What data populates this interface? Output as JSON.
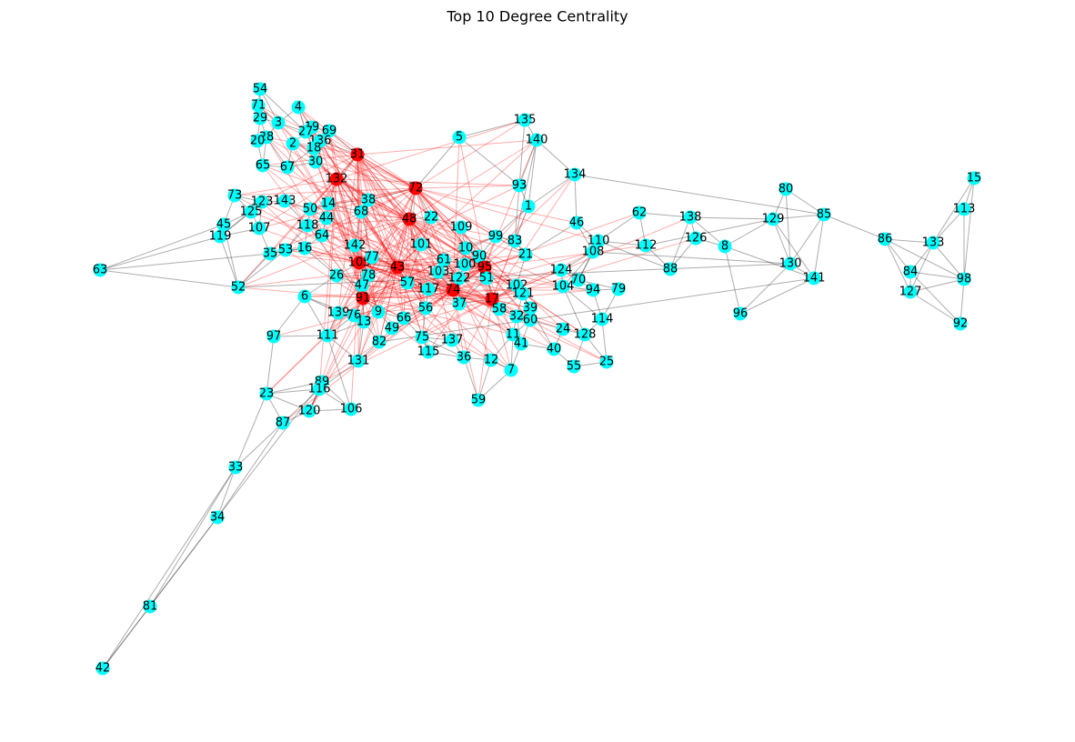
{
  "title": "Top 10 Degree Centrality",
  "nodes": [
    {
      "label": "54",
      "color": "#00ffff"
    },
    {
      "label": "71",
      "color": "#00ffff"
    },
    {
      "label": "4",
      "color": "#00ffff"
    },
    {
      "label": "29",
      "color": "#00ffff"
    },
    {
      "label": "3",
      "color": "#00ffff"
    },
    {
      "label": "19",
      "color": "#00ffff"
    },
    {
      "label": "27",
      "color": "#00ffff"
    },
    {
      "label": "69",
      "color": "#00ffff"
    },
    {
      "label": "28",
      "color": "#00ffff"
    },
    {
      "label": "20",
      "color": "#00ffff"
    },
    {
      "label": "2",
      "color": "#00ffff"
    },
    {
      "label": "136",
      "color": "#00ffff"
    },
    {
      "label": "18",
      "color": "#00ffff"
    },
    {
      "label": "31",
      "color": "#ff0000"
    },
    {
      "label": "65",
      "color": "#00ffff"
    },
    {
      "label": "67",
      "color": "#00ffff"
    },
    {
      "label": "30",
      "color": "#00ffff"
    },
    {
      "label": "132",
      "color": "#ff0000"
    },
    {
      "label": "5",
      "color": "#00ffff"
    },
    {
      "label": "135",
      "color": "#00ffff"
    },
    {
      "label": "140",
      "color": "#00ffff"
    },
    {
      "label": "134",
      "color": "#00ffff"
    },
    {
      "label": "93",
      "color": "#00ffff"
    },
    {
      "label": "72",
      "color": "#ff0000"
    },
    {
      "label": "1",
      "color": "#00ffff"
    },
    {
      "label": "73",
      "color": "#00ffff"
    },
    {
      "label": "123",
      "color": "#00ffff"
    },
    {
      "label": "143",
      "color": "#00ffff"
    },
    {
      "label": "14",
      "color": "#00ffff"
    },
    {
      "label": "38",
      "color": "#00ffff"
    },
    {
      "label": "125",
      "color": "#00ffff"
    },
    {
      "label": "50",
      "color": "#00ffff"
    },
    {
      "label": "68",
      "color": "#00ffff"
    },
    {
      "label": "44",
      "color": "#00ffff"
    },
    {
      "label": "48",
      "color": "#ff0000"
    },
    {
      "label": "22",
      "color": "#00ffff"
    },
    {
      "label": "45",
      "color": "#00ffff"
    },
    {
      "label": "107",
      "color": "#00ffff"
    },
    {
      "label": "118",
      "color": "#00ffff"
    },
    {
      "label": "109",
      "color": "#00ffff"
    },
    {
      "label": "46",
      "color": "#00ffff"
    },
    {
      "label": "62",
      "color": "#00ffff"
    },
    {
      "label": "138",
      "color": "#00ffff"
    },
    {
      "label": "80",
      "color": "#00ffff"
    },
    {
      "label": "129",
      "color": "#00ffff"
    },
    {
      "label": "85",
      "color": "#00ffff"
    },
    {
      "label": "15",
      "color": "#00ffff"
    },
    {
      "label": "113",
      "color": "#00ffff"
    },
    {
      "label": "119",
      "color": "#00ffff"
    },
    {
      "label": "64",
      "color": "#00ffff"
    },
    {
      "label": "99",
      "color": "#00ffff"
    },
    {
      "label": "83",
      "color": "#00ffff"
    },
    {
      "label": "110",
      "color": "#00ffff"
    },
    {
      "label": "112",
      "color": "#00ffff"
    },
    {
      "label": "126",
      "color": "#00ffff"
    },
    {
      "label": "8",
      "color": "#00ffff"
    },
    {
      "label": "86",
      "color": "#00ffff"
    },
    {
      "label": "133",
      "color": "#00ffff"
    },
    {
      "label": "35",
      "color": "#00ffff"
    },
    {
      "label": "53",
      "color": "#00ffff"
    },
    {
      "label": "16",
      "color": "#00ffff"
    },
    {
      "label": "142",
      "color": "#00ffff"
    },
    {
      "label": "101",
      "color": "#00ffff"
    },
    {
      "label": "10",
      "color": "#00ffff"
    },
    {
      "label": "90",
      "color": "#00ffff"
    },
    {
      "label": "21",
      "color": "#00ffff"
    },
    {
      "label": "108",
      "color": "#00ffff"
    },
    {
      "label": "63",
      "color": "#00ffff"
    },
    {
      "label": "105",
      "color": "#ff0000"
    },
    {
      "label": "77",
      "color": "#00ffff"
    },
    {
      "label": "43",
      "color": "#ff0000"
    },
    {
      "label": "61",
      "color": "#00ffff"
    },
    {
      "label": "100",
      "color": "#00ffff"
    },
    {
      "label": "95",
      "color": "#ff0000"
    },
    {
      "label": "103",
      "color": "#00ffff"
    },
    {
      "label": "124",
      "color": "#00ffff"
    },
    {
      "label": "88",
      "color": "#00ffff"
    },
    {
      "label": "130",
      "color": "#00ffff"
    },
    {
      "label": "84",
      "color": "#00ffff"
    },
    {
      "label": "98",
      "color": "#00ffff"
    },
    {
      "label": "141",
      "color": "#00ffff"
    },
    {
      "label": "26",
      "color": "#00ffff"
    },
    {
      "label": "78",
      "color": "#00ffff"
    },
    {
      "label": "122",
      "color": "#00ffff"
    },
    {
      "label": "51",
      "color": "#00ffff"
    },
    {
      "label": "70",
      "color": "#00ffff"
    },
    {
      "label": "52",
      "color": "#00ffff"
    },
    {
      "label": "47",
      "color": "#00ffff"
    },
    {
      "label": "57",
      "color": "#00ffff"
    },
    {
      "label": "117",
      "color": "#00ffff"
    },
    {
      "label": "74",
      "color": "#ff0000"
    },
    {
      "label": "102",
      "color": "#00ffff"
    },
    {
      "label": "104",
      "color": "#00ffff"
    },
    {
      "label": "94",
      "color": "#00ffff"
    },
    {
      "label": "79",
      "color": "#00ffff"
    },
    {
      "label": "127",
      "color": "#00ffff"
    },
    {
      "label": "6",
      "color": "#00ffff"
    },
    {
      "label": "91",
      "color": "#ff0000"
    },
    {
      "label": "121",
      "color": "#00ffff"
    },
    {
      "label": "17",
      "color": "#ff0000"
    },
    {
      "label": "37",
      "color": "#00ffff"
    },
    {
      "label": "56",
      "color": "#00ffff"
    },
    {
      "label": "39",
      "color": "#00ffff"
    },
    {
      "label": "58",
      "color": "#00ffff"
    },
    {
      "label": "139",
      "color": "#00ffff"
    },
    {
      "label": "76",
      "color": "#00ffff"
    },
    {
      "label": "9",
      "color": "#00ffff"
    },
    {
      "label": "66",
      "color": "#00ffff"
    },
    {
      "label": "32",
      "color": "#00ffff"
    },
    {
      "label": "60",
      "color": "#00ffff"
    },
    {
      "label": "13",
      "color": "#00ffff"
    },
    {
      "label": "49",
      "color": "#00ffff"
    },
    {
      "label": "114",
      "color": "#00ffff"
    },
    {
      "label": "96",
      "color": "#00ffff"
    },
    {
      "label": "92",
      "color": "#00ffff"
    },
    {
      "label": "24",
      "color": "#00ffff"
    },
    {
      "label": "128",
      "color": "#00ffff"
    },
    {
      "label": "97",
      "color": "#00ffff"
    },
    {
      "label": "111",
      "color": "#00ffff"
    },
    {
      "label": "82",
      "color": "#00ffff"
    },
    {
      "label": "75",
      "color": "#00ffff"
    },
    {
      "label": "137",
      "color": "#00ffff"
    },
    {
      "label": "11",
      "color": "#00ffff"
    },
    {
      "label": "41",
      "color": "#00ffff"
    },
    {
      "label": "40",
      "color": "#00ffff"
    },
    {
      "label": "115",
      "color": "#00ffff"
    },
    {
      "label": "36",
      "color": "#00ffff"
    },
    {
      "label": "12",
      "color": "#00ffff"
    },
    {
      "label": "131",
      "color": "#00ffff"
    },
    {
      "label": "25",
      "color": "#00ffff"
    },
    {
      "label": "55",
      "color": "#00ffff"
    },
    {
      "label": "7",
      "color": "#00ffff"
    },
    {
      "label": "89",
      "color": "#00ffff"
    },
    {
      "label": "116",
      "color": "#00ffff"
    },
    {
      "label": "23",
      "color": "#00ffff"
    },
    {
      "label": "59",
      "color": "#00ffff"
    },
    {
      "label": "106",
      "color": "#00ffff"
    },
    {
      "label": "120",
      "color": "#00ffff"
    },
    {
      "label": "87",
      "color": "#00ffff"
    },
    {
      "label": "33",
      "color": "#00ffff"
    },
    {
      "label": "34",
      "color": "#00ffff"
    },
    {
      "label": "81",
      "color": "#00ffff"
    },
    {
      "label": "42",
      "color": "#00ffff"
    }
  ]
}
